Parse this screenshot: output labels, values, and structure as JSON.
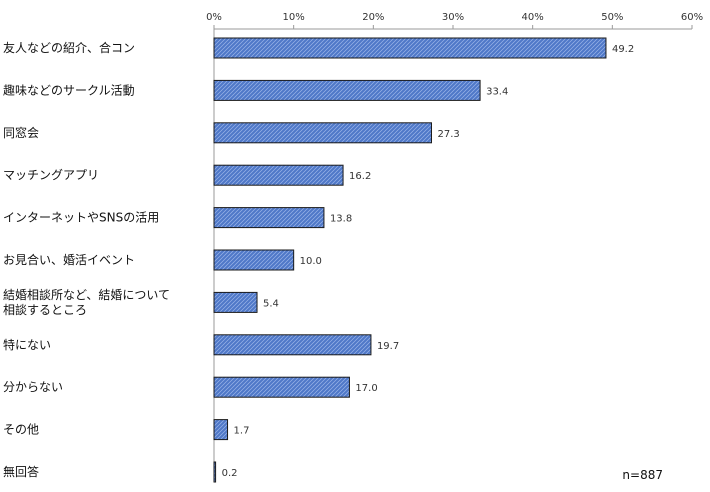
{
  "chart_data": {
    "type": "bar",
    "orientation": "horizontal",
    "categories": [
      "友人などの紹介、合コン",
      "趣味などのサークル活動",
      "同窓会",
      "マッチングアプリ",
      "インターネットやSNSの活用",
      "お見合い、婚活イベント",
      "結婚相談所など、結婚について\n相談するところ",
      "特にない",
      "分からない",
      "その他",
      "無回答"
    ],
    "values": [
      49.2,
      33.4,
      27.3,
      16.2,
      13.8,
      10.0,
      5.4,
      19.7,
      17.0,
      1.7,
      0.2
    ],
    "value_labels": [
      "49.2",
      "33.4",
      "27.3",
      "16.2",
      "13.8",
      "10.0",
      "5.4",
      "19.7",
      "17.0",
      "1.7",
      "0.2"
    ],
    "xlim": [
      0,
      60
    ],
    "x_ticks": [
      "0%",
      "10%",
      "20%",
      "30%",
      "40%",
      "50%",
      "60%"
    ],
    "x_axis_position": "top",
    "grid": false,
    "legend": false,
    "bar_color": "#4F78C8",
    "bar_pattern_color": "#9BB5E8",
    "bar_border_color": "#1A1A1A",
    "annotation": "n=887"
  }
}
